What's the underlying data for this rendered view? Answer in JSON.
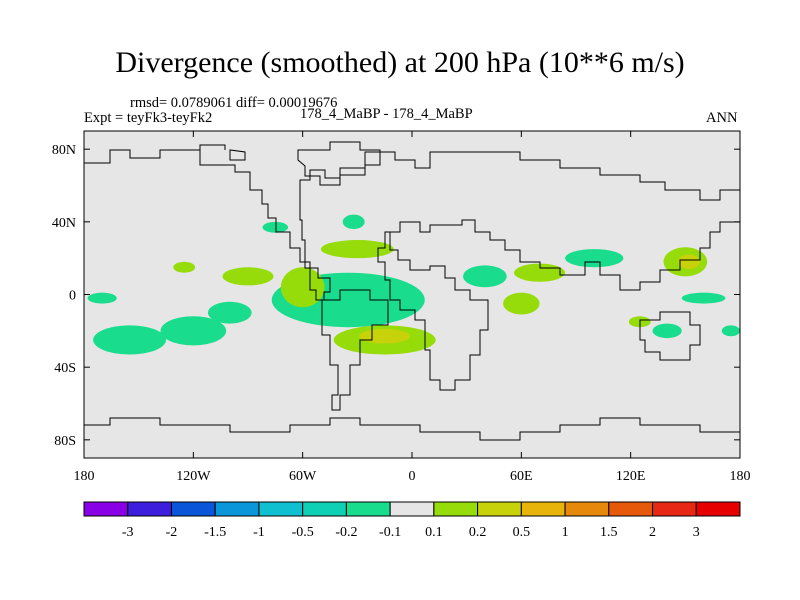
{
  "title": "Divergence (smoothed) at 200 hPa (10**6 m/s)",
  "stats": "rmsd= 0.0789061 diff= 0.00019676",
  "experiment": "Expt = teyFk3-teyFk2",
  "run_label": "178_4_MaBP - 178_4_MaBP",
  "season": "ANN",
  "chart_data": {
    "type": "contour-map",
    "title": "Divergence (smoothed) at 200 hPa (10**6 m/s)",
    "units": "10**6 m/s",
    "x_axis": {
      "range": [
        -180,
        180
      ],
      "ticks": [
        -180,
        -120,
        -60,
        0,
        60,
        120,
        180
      ],
      "tick_labels": [
        "180",
        "120W",
        "60W",
        "0",
        "60E",
        "120E",
        "180"
      ]
    },
    "y_axis": {
      "range": [
        -90,
        90
      ],
      "ticks": [
        80,
        40,
        0,
        -40,
        -80
      ],
      "tick_labels": [
        "80N",
        "40N",
        "0",
        "40S",
        "80S"
      ]
    },
    "levels": [
      -3,
      -2,
      -1.5,
      -1,
      -0.5,
      -0.2,
      -0.1,
      0.1,
      0.2,
      0.5,
      1,
      1.5,
      2,
      3
    ],
    "level_labels": [
      "-3",
      "-2",
      "-1.5",
      "-1",
      "-0.5",
      "-0.2",
      "-0.1",
      "0.1",
      "0.2",
      "0.5",
      "1",
      "1.5",
      "2",
      "3"
    ],
    "colors": [
      "#8A00E6",
      "#3C1EDC",
      "#0A55D8",
      "#0A96D8",
      "#10BFD0",
      "#0FCFB4",
      "#19DC8C",
      "#E6E6E6",
      "#96DC0A",
      "#C8D20A",
      "#E6B40A",
      "#E6880A",
      "#E6580A",
      "#E62814",
      "#E60000"
    ],
    "regions": [
      {
        "value": -0.3,
        "cx": -40,
        "cy": -2,
        "rx": 30,
        "ry": 10
      },
      {
        "value": -0.15,
        "cx": -35,
        "cy": -3,
        "rx": 42,
        "ry": 15
      },
      {
        "value": 0.4,
        "cx": -60,
        "cy": 4,
        "rx": 8,
        "ry": 7
      },
      {
        "value": 0.15,
        "cx": -60,
        "cy": 4,
        "rx": 12,
        "ry": 11
      },
      {
        "value": -0.15,
        "cx": -100,
        "cy": -10,
        "rx": 12,
        "ry": 6
      },
      {
        "value": -0.15,
        "cx": -155,
        "cy": -25,
        "rx": 20,
        "ry": 8
      },
      {
        "value": -0.15,
        "cx": -120,
        "cy": -20,
        "rx": 18,
        "ry": 8
      },
      {
        "value": -0.15,
        "cx": -170,
        "cy": -2,
        "rx": 8,
        "ry": 3
      },
      {
        "value": 0.15,
        "cx": -125,
        "cy": 15,
        "rx": 6,
        "ry": 3
      },
      {
        "value": 0.15,
        "cx": -90,
        "cy": 10,
        "rx": 14,
        "ry": 5
      },
      {
        "value": 0.15,
        "cx": -30,
        "cy": 25,
        "rx": 20,
        "ry": 5
      },
      {
        "value": -0.15,
        "cx": -32,
        "cy": 40,
        "rx": 6,
        "ry": 4
      },
      {
        "value": -0.15,
        "cx": -75,
        "cy": 37,
        "rx": 7,
        "ry": 3
      },
      {
        "value": 0.15,
        "cx": -15,
        "cy": -25,
        "rx": 28,
        "ry": 8
      },
      {
        "value": 0.4,
        "cx": -15,
        "cy": -23,
        "rx": 14,
        "ry": 4
      },
      {
        "value": -0.15,
        "cx": 40,
        "cy": 10,
        "rx": 12,
        "ry": 6
      },
      {
        "value": 0.15,
        "cx": 70,
        "cy": 12,
        "rx": 14,
        "ry": 5
      },
      {
        "value": 0.15,
        "cx": 60,
        "cy": -5,
        "rx": 10,
        "ry": 6
      },
      {
        "value": -0.15,
        "cx": 100,
        "cy": 20,
        "rx": 16,
        "ry": 5
      },
      {
        "value": 0.15,
        "cx": 150,
        "cy": 18,
        "rx": 12,
        "ry": 8
      },
      {
        "value": 0.4,
        "cx": 152,
        "cy": 18,
        "rx": 6,
        "ry": 4
      },
      {
        "value": -0.15,
        "cx": 160,
        "cy": -2,
        "rx": 12,
        "ry": 3
      },
      {
        "value": -0.15,
        "cx": 140,
        "cy": -20,
        "rx": 8,
        "ry": 4
      },
      {
        "value": -0.15,
        "cx": 175,
        "cy": -20,
        "rx": 5,
        "ry": 3
      },
      {
        "value": 0.15,
        "cx": 125,
        "cy": -15,
        "rx": 6,
        "ry": 3
      }
    ]
  }
}
